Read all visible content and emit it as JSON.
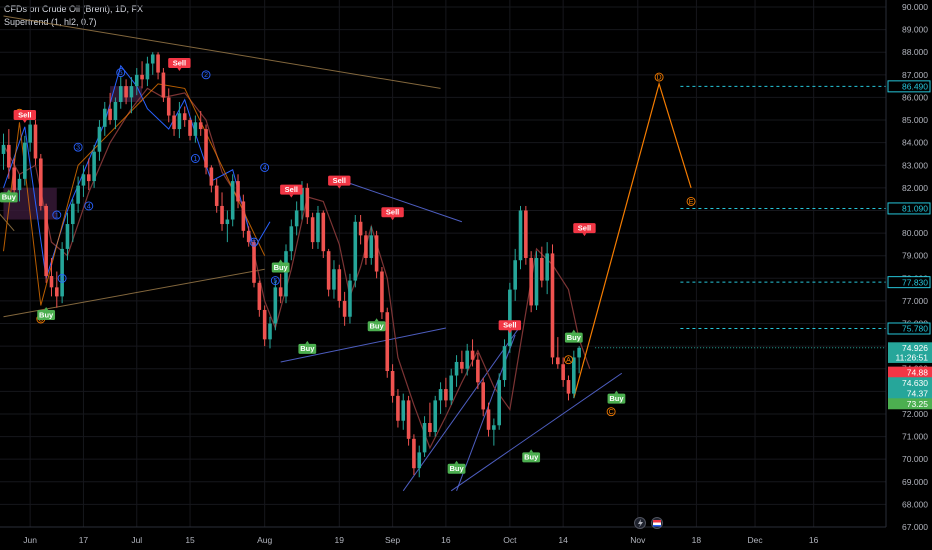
{
  "legend": {
    "symbol": "CFDs on Crude Oil (Brent), 1D, FX",
    "indicator": "Supertrend (1, hl2, 0.7)"
  },
  "colors": {
    "up": "#26a69a",
    "down": "#ef5350",
    "wave": "#2962ff",
    "orange": "#f57c00",
    "tan": "#9a7a48",
    "blue_line": "#5b6ee1",
    "dashed": "#26c6da",
    "sell": "#f23645",
    "buy": "#4caf50"
  },
  "chart_data": {
    "type": "candlestick",
    "ylim": [
      67,
      90
    ],
    "yticks": [
      "67.000",
      "68.000",
      "69.000",
      "70.000",
      "71.000",
      "72.000",
      "73.000",
      "74.000",
      "75.000",
      "76.000",
      "77.000",
      "78.000",
      "79.000",
      "80.000",
      "81.000",
      "82.000",
      "83.000",
      "84.000",
      "85.000",
      "86.000",
      "87.000",
      "88.000",
      "89.000",
      "90.000"
    ],
    "xticks": [
      {
        "label": "Jun",
        "i": 5
      },
      {
        "label": "17",
        "i": 15
      },
      {
        "label": "Jul",
        "i": 25
      },
      {
        "label": "15",
        "i": 35
      },
      {
        "label": "Aug",
        "i": 49
      },
      {
        "label": "19",
        "i": 63
      },
      {
        "label": "Sep",
        "i": 73
      },
      {
        "label": "16",
        "i": 83
      },
      {
        "label": "Oct",
        "i": 95
      },
      {
        "label": "14",
        "i": 105
      },
      {
        "label": "Nov",
        "i": 119
      },
      {
        "label": "18",
        "i": 130
      },
      {
        "label": "Dec",
        "i": 141
      },
      {
        "label": "16",
        "i": 152
      }
    ],
    "candles": [
      [
        83.5,
        84.4,
        82.8,
        83.9
      ],
      [
        83.9,
        84.6,
        82.4,
        82.9
      ],
      [
        82.9,
        83.3,
        81.6,
        81.9
      ],
      [
        81.9,
        82.6,
        81.4,
        82.4
      ],
      [
        82.4,
        84.3,
        82.1,
        84.0
      ],
      [
        84.0,
        85.2,
        83.6,
        84.8
      ],
      [
        84.8,
        85.0,
        83.0,
        83.3
      ],
      [
        83.3,
        83.5,
        81.0,
        81.2
      ],
      [
        81.2,
        81.3,
        77.8,
        78.1
      ],
      [
        78.1,
        78.9,
        77.2,
        77.6
      ],
      [
        77.6,
        78.3,
        76.7,
        77.2
      ],
      [
        77.2,
        79.6,
        76.9,
        79.3
      ],
      [
        79.3,
        80.9,
        78.8,
        80.4
      ],
      [
        80.4,
        81.5,
        79.6,
        81.3
      ],
      [
        81.3,
        82.5,
        80.9,
        82.1
      ],
      [
        82.1,
        83.0,
        81.6,
        82.6
      ],
      [
        82.6,
        83.3,
        81.9,
        82.3
      ],
      [
        82.3,
        83.9,
        82.0,
        83.6
      ],
      [
        83.6,
        85.0,
        83.2,
        84.7
      ],
      [
        84.7,
        85.8,
        84.3,
        85.5
      ],
      [
        85.5,
        86.2,
        84.8,
        85.0
      ],
      [
        85.0,
        86.0,
        84.6,
        85.8
      ],
      [
        85.8,
        86.9,
        85.5,
        86.5
      ],
      [
        86.5,
        86.8,
        85.7,
        86.0
      ],
      [
        86.0,
        86.9,
        85.3,
        86.5
      ],
      [
        86.5,
        87.3,
        86.1,
        87.0
      ],
      [
        87.0,
        87.6,
        86.4,
        86.8
      ],
      [
        86.8,
        87.8,
        86.5,
        87.5
      ],
      [
        87.5,
        88.0,
        87.0,
        87.9
      ],
      [
        87.9,
        88.0,
        86.8,
        87.1
      ],
      [
        87.1,
        87.3,
        85.8,
        86.0
      ],
      [
        86.0,
        86.4,
        84.9,
        85.2
      ],
      [
        85.2,
        85.4,
        84.3,
        84.6
      ],
      [
        84.6,
        85.8,
        84.2,
        85.3
      ],
      [
        85.3,
        85.6,
        84.7,
        85.0
      ],
      [
        85.0,
        85.1,
        84.1,
        84.3
      ],
      [
        84.3,
        85.2,
        84.0,
        84.9
      ],
      [
        84.9,
        85.4,
        84.3,
        84.6
      ],
      [
        84.6,
        84.8,
        82.6,
        82.9
      ],
      [
        82.9,
        83.0,
        81.8,
        82.1
      ],
      [
        82.1,
        82.4,
        80.9,
        81.2
      ],
      [
        81.2,
        81.8,
        80.1,
        80.4
      ],
      [
        80.4,
        81.0,
        79.6,
        80.6
      ],
      [
        80.6,
        82.6,
        80.3,
        82.3
      ],
      [
        82.3,
        82.6,
        81.1,
        81.4
      ],
      [
        81.4,
        81.7,
        79.8,
        80.1
      ],
      [
        80.1,
        80.3,
        79.4,
        79.6
      ],
      [
        79.6,
        79.7,
        77.6,
        77.8
      ],
      [
        77.8,
        77.9,
        76.3,
        76.6
      ],
      [
        76.6,
        76.8,
        75.0,
        75.3
      ],
      [
        75.3,
        76.3,
        74.9,
        76.0
      ],
      [
        76.0,
        77.9,
        75.7,
        77.6
      ],
      [
        77.6,
        78.2,
        76.9,
        77.2
      ],
      [
        77.2,
        79.5,
        76.9,
        79.2
      ],
      [
        79.2,
        80.6,
        78.8,
        80.3
      ],
      [
        80.3,
        81.4,
        79.9,
        81.0
      ],
      [
        81.0,
        82.3,
        80.6,
        82.0
      ],
      [
        82.0,
        82.2,
        80.4,
        80.7
      ],
      [
        80.7,
        80.9,
        79.3,
        79.6
      ],
      [
        79.6,
        81.2,
        79.3,
        80.9
      ],
      [
        80.9,
        81.0,
        78.9,
        79.2
      ],
      [
        79.2,
        79.3,
        77.2,
        77.5
      ],
      [
        77.5,
        78.8,
        77.1,
        78.4
      ],
      [
        78.4,
        78.6,
        76.7,
        77.0
      ],
      [
        77.0,
        77.4,
        75.9,
        76.3
      ],
      [
        76.3,
        78.2,
        76.0,
        77.9
      ],
      [
        77.9,
        80.8,
        77.6,
        80.5
      ],
      [
        80.5,
        80.8,
        79.5,
        79.9
      ],
      [
        79.9,
        80.1,
        78.6,
        78.9
      ],
      [
        78.9,
        80.3,
        78.6,
        79.9
      ],
      [
        79.9,
        80.1,
        78.0,
        78.3
      ],
      [
        78.3,
        78.5,
        76.2,
        76.5
      ],
      [
        76.5,
        76.7,
        73.6,
        73.9
      ],
      [
        73.9,
        74.2,
        72.5,
        72.8
      ],
      [
        72.8,
        73.1,
        71.4,
        71.7
      ],
      [
        71.7,
        72.9,
        71.3,
        72.6
      ],
      [
        72.6,
        72.8,
        70.6,
        70.9
      ],
      [
        70.9,
        71.1,
        69.3,
        69.6
      ],
      [
        69.6,
        70.6,
        69.2,
        70.3
      ],
      [
        70.3,
        71.9,
        70.1,
        71.6
      ],
      [
        71.6,
        72.5,
        71.0,
        71.2
      ],
      [
        71.2,
        72.8,
        71.0,
        72.6
      ],
      [
        72.6,
        73.4,
        72.0,
        73.1
      ],
      [
        73.1,
        73.6,
        72.3,
        72.6
      ],
      [
        72.6,
        74.0,
        72.4,
        73.7
      ],
      [
        73.7,
        74.6,
        73.2,
        74.3
      ],
      [
        74.3,
        74.8,
        73.8,
        74.0
      ],
      [
        74.0,
        75.1,
        73.7,
        74.8
      ],
      [
        74.8,
        75.3,
        74.1,
        74.4
      ],
      [
        74.4,
        74.7,
        73.1,
        73.4
      ],
      [
        73.4,
        73.6,
        71.9,
        72.2
      ],
      [
        72.2,
        72.5,
        71.0,
        71.3
      ],
      [
        71.3,
        71.8,
        70.6,
        71.5
      ],
      [
        71.5,
        73.8,
        71.3,
        73.5
      ],
      [
        73.5,
        75.3,
        73.2,
        75.0
      ],
      [
        75.0,
        77.8,
        74.7,
        77.5
      ],
      [
        77.5,
        79.3,
        77.0,
        78.8
      ],
      [
        78.8,
        81.2,
        78.4,
        81.0
      ],
      [
        81.0,
        81.2,
        78.6,
        78.9
      ],
      [
        78.9,
        79.2,
        76.5,
        76.8
      ],
      [
        76.8,
        79.2,
        76.6,
        78.9
      ],
      [
        78.9,
        79.4,
        77.6,
        77.9
      ],
      [
        77.9,
        79.6,
        77.3,
        79.1
      ],
      [
        79.1,
        79.5,
        74.2,
        74.5
      ],
      [
        74.5,
        75.4,
        74.0,
        74.2
      ],
      [
        74.2,
        74.5,
        73.2,
        73.5
      ],
      [
        73.5,
        73.7,
        72.6,
        72.9
      ],
      [
        72.9,
        74.8,
        72.7,
        74.5
      ],
      [
        74.5,
        75.0,
        73.8,
        74.926
      ]
    ],
    "supertrend": [
      [
        0,
        83.9
      ],
      [
        3,
        82.6
      ],
      [
        6,
        83.0
      ],
      [
        9,
        79.6
      ],
      [
        12,
        79.0
      ],
      [
        16,
        81.8
      ],
      [
        20,
        84.0
      ],
      [
        24,
        85.5
      ],
      [
        27,
        86.4
      ],
      [
        30,
        86.0
      ],
      [
        34,
        86.2
      ],
      [
        38,
        85.0
      ],
      [
        41,
        82.7
      ],
      [
        45,
        81.2
      ],
      [
        49,
        77.0
      ],
      [
        51,
        75.8
      ],
      [
        54,
        78.4
      ],
      [
        57,
        81.6
      ],
      [
        60,
        81.4
      ],
      [
        63,
        79.5
      ],
      [
        65,
        77.2
      ],
      [
        67,
        78.5
      ],
      [
        69,
        80.3
      ],
      [
        72,
        78.0
      ],
      [
        74,
        74.5
      ],
      [
        77,
        72.4
      ],
      [
        80,
        70.5
      ],
      [
        83,
        71.9
      ],
      [
        86,
        73.4
      ],
      [
        89,
        74.8
      ],
      [
        92,
        73.2
      ],
      [
        95,
        72.2
      ],
      [
        98,
        76.5
      ],
      [
        100,
        79.3
      ],
      [
        103,
        78.6
      ],
      [
        106,
        77.5
      ],
      [
        108,
        75.3
      ],
      [
        110,
        74.0
      ]
    ],
    "zigzag_blue": [
      [
        0,
        82.0
      ],
      [
        4,
        84.7
      ],
      [
        8,
        78.0
      ],
      [
        12,
        81.0
      ],
      [
        19,
        84.9
      ],
      [
        22,
        87.4
      ],
      [
        25,
        86.5
      ],
      [
        27,
        85.5
      ],
      [
        31,
        84.6
      ],
      [
        34,
        85.9
      ],
      [
        36,
        84.4
      ],
      [
        39,
        82.3
      ],
      [
        43,
        82.8
      ],
      [
        47,
        79.3
      ],
      [
        50,
        80.5
      ]
    ],
    "zigzag_orange_old": [
      [
        0,
        79.2
      ],
      [
        3,
        84.9
      ],
      [
        7,
        76.8
      ],
      [
        14,
        83.0
      ],
      [
        29,
        86.6
      ],
      [
        34,
        86.4
      ],
      [
        49,
        79.0
      ]
    ],
    "trendlines": [
      {
        "from": [
          0,
          89.6
        ],
        "to": [
          82,
          86.4
        ],
        "color": "tan"
      },
      {
        "from": [
          0,
          76.3
        ],
        "to": [
          49,
          78.4
        ],
        "color": "tan"
      },
      {
        "from": [
          -2,
          81.2
        ],
        "to": [
          2,
          80.1
        ],
        "color": "tan"
      },
      {
        "from": [
          65,
          82.2
        ],
        "to": [
          86,
          80.5
        ],
        "color": "blue_line"
      },
      {
        "from": [
          52,
          74.3
        ],
        "to": [
          83,
          75.8
        ],
        "color": "blue_line"
      },
      {
        "from": [
          75,
          68.6
        ],
        "to": [
          97,
          75.9
        ],
        "color": "blue_line"
      },
      {
        "from": [
          84,
          68.6
        ],
        "to": [
          116,
          73.8
        ],
        "color": "blue_line"
      },
      {
        "from": [
          85,
          68.6
        ],
        "to": [
          96,
          75.5
        ],
        "color": "blue_line"
      }
    ],
    "projection": [
      [
        107,
        72.7
      ],
      [
        123,
        86.6
      ],
      [
        129,
        82.0
      ]
    ],
    "wave_labels": [
      {
        "text": "D",
        "i": 3,
        "y": 85.3,
        "color": "orange"
      },
      {
        "text": "C",
        "i": 7,
        "y": 76.2,
        "color": "orange"
      },
      {
        "text": "1",
        "i": 10,
        "y": 80.8,
        "color": "wave"
      },
      {
        "text": "2",
        "i": 11,
        "y": 78.0,
        "color": "wave"
      },
      {
        "text": "3",
        "i": 14,
        "y": 83.8,
        "color": "wave"
      },
      {
        "text": "4",
        "i": 16,
        "y": 81.2,
        "color": "wave"
      },
      {
        "text": "5",
        "i": 22,
        "y": 87.1,
        "color": "wave"
      },
      {
        "text": "1",
        "i": 36,
        "y": 83.3,
        "color": "wave"
      },
      {
        "text": "2",
        "i": 38,
        "y": 87.0,
        "color": "wave"
      },
      {
        "text": "3",
        "i": 47,
        "y": 79.6,
        "color": "wave"
      },
      {
        "text": "4",
        "i": 49,
        "y": 82.9,
        "color": "wave"
      },
      {
        "text": "5",
        "i": 51,
        "y": 77.9,
        "color": "wave"
      },
      {
        "text": "A",
        "i": 106,
        "y": 74.4,
        "color": "orange"
      },
      {
        "text": "C",
        "i": 114,
        "y": 72.1,
        "color": "orange"
      },
      {
        "text": "D",
        "i": 123,
        "y": 86.9,
        "color": "orange"
      },
      {
        "text": "E",
        "i": 129,
        "y": 81.4,
        "color": "orange"
      }
    ],
    "signals": [
      {
        "text": "Sell",
        "i": 4,
        "y": 85.0,
        "type": "sell"
      },
      {
        "text": "Buy",
        "i": 1,
        "y": 81.8,
        "type": "buy"
      },
      {
        "text": "Buy",
        "i": 8,
        "y": 76.6,
        "type": "buy"
      },
      {
        "text": "Sell",
        "i": 33,
        "y": 87.3,
        "type": "sell"
      },
      {
        "text": "Sell",
        "i": 54,
        "y": 81.7,
        "type": "sell"
      },
      {
        "text": "Buy",
        "i": 52,
        "y": 78.7,
        "type": "buy"
      },
      {
        "text": "Buy",
        "i": 57,
        "y": 75.1,
        "type": "buy"
      },
      {
        "text": "Sell",
        "i": 63,
        "y": 82.1,
        "type": "sell"
      },
      {
        "text": "Sell",
        "i": 73,
        "y": 80.7,
        "type": "sell"
      },
      {
        "text": "Buy",
        "i": 70,
        "y": 76.1,
        "type": "buy"
      },
      {
        "text": "Buy",
        "i": 85,
        "y": 69.8,
        "type": "buy"
      },
      {
        "text": "Sell",
        "i": 95,
        "y": 75.7,
        "type": "sell"
      },
      {
        "text": "Buy",
        "i": 99,
        "y": 70.3,
        "type": "buy"
      },
      {
        "text": "Sell",
        "i": 109,
        "y": 80.0,
        "type": "sell"
      },
      {
        "text": "Buy",
        "i": 107,
        "y": 75.6,
        "type": "buy"
      },
      {
        "text": "Buy",
        "i": 115,
        "y": 72.9,
        "type": "buy"
      }
    ],
    "dashed_levels": [
      {
        "y": 86.49,
        "label": "86.490"
      },
      {
        "y": 81.09,
        "label": "81.090"
      },
      {
        "y": 77.83,
        "label": "77.830"
      },
      {
        "y": 75.78,
        "label": "75.780"
      }
    ],
    "price_tags": [
      {
        "y": 74.926,
        "label": "74.926",
        "bg": "#26a69a",
        "fg": "#ffffff"
      },
      {
        "y": 74.5,
        "label": "11:26:51",
        "bg": "#26a69a",
        "fg": "#ffffff"
      },
      {
        "y": 73.85,
        "label": "74.88",
        "bg": "#f23645",
        "fg": "#ffffff"
      },
      {
        "y": 73.38,
        "label": "74.630",
        "bg": "#26a69a",
        "fg": "#ffffff"
      },
      {
        "y": 72.92,
        "label": "74.37",
        "bg": "#26a69a",
        "fg": "#ffffff"
      },
      {
        "y": 72.45,
        "label": "73.25",
        "bg": "#4caf50",
        "fg": "#ffffff"
      }
    ],
    "boxes": [
      {
        "i0": 0,
        "i1": 10,
        "y0": 80.6,
        "y1": 82.0,
        "color": "#3a1a3a"
      },
      {
        "i0": 20,
        "i1": 26,
        "y0": 85.8,
        "y1": 86.5,
        "color": "#3a1a3a"
      }
    ]
  }
}
